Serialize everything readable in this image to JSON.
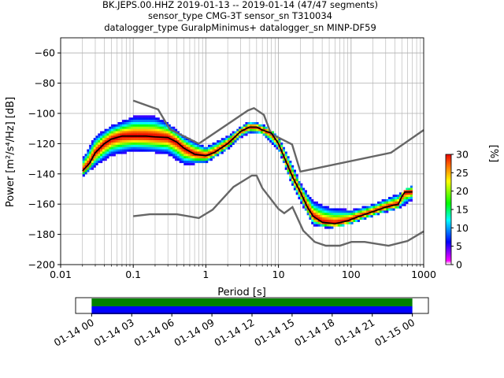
{
  "title_lines": [
    "BK.JEPS.00.HHZ   2019-01-13 -- 2019-01-14  (47/47 segments)",
    "sensor_type CMG-3T sensor_sn T310034",
    "datalogger_type GuralpMinimus+ datalogger_sn MINP-DF59"
  ],
  "chart_data": {
    "type": "heatmap",
    "title": "BK.JEPS.00.HHZ   2019-01-13 -- 2019-01-14  (47/47 segments)",
    "xlabel": "Period [s]",
    "ylabel": "Power [m²/s⁴/Hz] [dB]",
    "xscale": "log",
    "xlim": [
      0.01,
      1000
    ],
    "ylim": [
      -200,
      -50
    ],
    "x_tick_labels": [
      "0.01",
      "0.1",
      "1",
      "10",
      "100",
      "1000"
    ],
    "x_tick_values": [
      0.01,
      0.1,
      1,
      10,
      100,
      1000
    ],
    "y_ticks": [
      -60,
      -80,
      -100,
      -120,
      -140,
      -160,
      -180,
      -200
    ],
    "grid": true,
    "colorbar": {
      "label": "[%]",
      "range": [
        0,
        30
      ],
      "ticks": [
        0,
        5,
        10,
        15,
        20,
        25,
        30
      ]
    },
    "series": [
      {
        "role": "new-high-noise-model",
        "points": [
          [
            0.1,
            -91.5
          ],
          [
            0.22,
            -97.4
          ],
          [
            0.32,
            -110.5
          ],
          [
            0.8,
            -120
          ],
          [
            3.8,
            -98
          ],
          [
            4.6,
            -96.5
          ],
          [
            6.3,
            -101
          ],
          [
            7.9,
            -113.5
          ],
          [
            15.4,
            -120.5
          ],
          [
            20,
            -138.5
          ],
          [
            354.8,
            -126
          ],
          [
            1000,
            -111
          ]
        ]
      },
      {
        "role": "new-low-noise-model",
        "points": [
          [
            0.1,
            -168
          ],
          [
            0.17,
            -166.7
          ],
          [
            0.4,
            -166.7
          ],
          [
            0.8,
            -169.2
          ],
          [
            1.24,
            -163.7
          ],
          [
            2.4,
            -148.6
          ],
          [
            4.3,
            -141.1
          ],
          [
            5,
            -141.1
          ],
          [
            6,
            -149.4
          ],
          [
            10,
            -163.2
          ],
          [
            12,
            -166
          ],
          [
            15.6,
            -162
          ],
          [
            21.9,
            -177.5
          ],
          [
            31.6,
            -185
          ],
          [
            45,
            -187.5
          ],
          [
            70,
            -187.5
          ],
          [
            101,
            -185
          ],
          [
            154,
            -185
          ],
          [
            328,
            -187.5
          ],
          [
            600,
            -184.4
          ],
          [
            1000,
            -178
          ]
        ]
      },
      {
        "role": "mode",
        "points": [
          [
            0.02,
            -138
          ],
          [
            0.025,
            -133
          ],
          [
            0.03,
            -126
          ],
          [
            0.04,
            -120
          ],
          [
            0.05,
            -117
          ],
          [
            0.07,
            -115
          ],
          [
            0.1,
            -115
          ],
          [
            0.15,
            -115
          ],
          [
            0.2,
            -115.5
          ],
          [
            0.3,
            -116
          ],
          [
            0.4,
            -119
          ],
          [
            0.5,
            -123
          ],
          [
            0.7,
            -127
          ],
          [
            1,
            -128
          ],
          [
            1.3,
            -126
          ],
          [
            2,
            -120
          ],
          [
            3,
            -112
          ],
          [
            4,
            -109
          ],
          [
            5,
            -109
          ],
          [
            6,
            -111
          ],
          [
            8,
            -113
          ],
          [
            10,
            -120
          ],
          [
            13,
            -133
          ],
          [
            16,
            -143
          ],
          [
            20,
            -152
          ],
          [
            25,
            -162
          ],
          [
            30,
            -168
          ],
          [
            40,
            -172
          ],
          [
            60,
            -173
          ],
          [
            90,
            -171
          ],
          [
            130,
            -168
          ],
          [
            200,
            -165
          ],
          [
            300,
            -162
          ],
          [
            450,
            -160
          ],
          [
            500,
            -155
          ],
          [
            550,
            -152
          ],
          [
            700,
            -152
          ]
        ]
      },
      {
        "role": "psd-spread-upper",
        "points": [
          [
            0.02,
            -130
          ],
          [
            0.03,
            -115
          ],
          [
            0.05,
            -108
          ],
          [
            0.1,
            -102
          ],
          [
            0.2,
            -102
          ],
          [
            0.3,
            -106
          ],
          [
            0.5,
            -115
          ],
          [
            1,
            -122
          ],
          [
            2,
            -115
          ],
          [
            3,
            -109
          ],
          [
            4,
            -105
          ],
          [
            6,
            -107
          ],
          [
            10,
            -115
          ],
          [
            15,
            -132
          ],
          [
            20,
            -146
          ],
          [
            30,
            -158
          ],
          [
            50,
            -162
          ],
          [
            100,
            -164
          ],
          [
            200,
            -160
          ],
          [
            500,
            -152
          ],
          [
            700,
            -147
          ]
        ]
      },
      {
        "role": "psd-spread-lower",
        "points": [
          [
            0.02,
            -142
          ],
          [
            0.03,
            -135
          ],
          [
            0.05,
            -128
          ],
          [
            0.1,
            -125
          ],
          [
            0.2,
            -126
          ],
          [
            0.3,
            -127
          ],
          [
            0.5,
            -134
          ],
          [
            1,
            -133
          ],
          [
            2,
            -124
          ],
          [
            3,
            -116
          ],
          [
            4,
            -113
          ],
          [
            6,
            -114
          ],
          [
            10,
            -124
          ],
          [
            15,
            -146
          ],
          [
            20,
            -158
          ],
          [
            30,
            -174
          ],
          [
            50,
            -176
          ],
          [
            100,
            -173
          ],
          [
            200,
            -168
          ],
          [
            500,
            -162
          ],
          [
            700,
            -157
          ]
        ]
      }
    ]
  },
  "timeline": {
    "tick_labels": [
      "01-14 00",
      "01-14 03",
      "01-14 06",
      "01-14 09",
      "01-14 12",
      "01-14 15",
      "01-14 18",
      "01-14 21",
      "01-15 00"
    ],
    "tick_hours": [
      0,
      3,
      6,
      9,
      12,
      15,
      18,
      21,
      24
    ],
    "range_hours": [
      -1.2,
      25.2
    ],
    "bars": [
      {
        "color": "#008000",
        "start_hour": 0,
        "end_hour": 24
      },
      {
        "color": "#0000ff",
        "start_hour": 0,
        "end_hour": 24
      }
    ]
  }
}
